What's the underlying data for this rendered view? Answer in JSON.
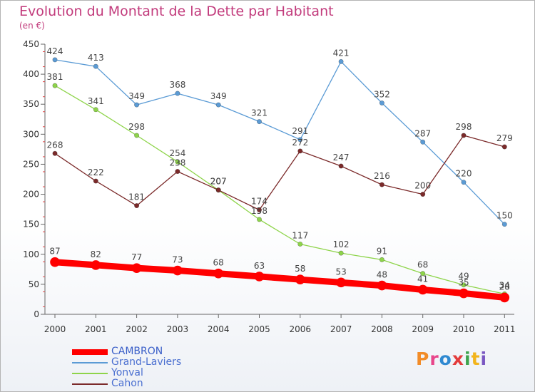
{
  "header": {
    "title": "Evolution du Montant de la Dette par Habitant",
    "unit": "(en €)"
  },
  "logo": {
    "text": "Proxiti",
    "colors": [
      "#f28c28",
      "#e8468b",
      "#2f89d1",
      "#e33b3b",
      "#3ea34d",
      "#f2b41c",
      "#7a57c2"
    ]
  },
  "chart_data": {
    "type": "line",
    "title": "Evolution du Montant de la Dette par Habitant",
    "ylabel": "(en €)",
    "xlabel": "",
    "categories": [
      "2000",
      "2001",
      "2002",
      "2003",
      "2004",
      "2005",
      "2006",
      "2007",
      "2008",
      "2009",
      "2010",
      "2011"
    ],
    "ylim": [
      0,
      450
    ],
    "yticks": [
      0,
      50,
      100,
      150,
      200,
      250,
      300,
      350,
      400,
      450
    ],
    "grid": false,
    "legend": "bottom-left",
    "series": [
      {
        "name": "CAMBRON",
        "color": "#ff0000",
        "emphasis": true,
        "values": [
          87,
          82,
          77,
          73,
          68,
          63,
          58,
          53,
          48,
          41,
          35,
          28
        ],
        "labels": [
          "87",
          "82",
          "77",
          "73",
          "68",
          "63",
          "58",
          "53",
          "48",
          "41",
          "35",
          "28"
        ]
      },
      {
        "name": "Grand-Laviers",
        "color": "#5b9bd5",
        "values": [
          424,
          413,
          349,
          368,
          349,
          321,
          291,
          421,
          352,
          287,
          220,
          150
        ],
        "labels": [
          "424",
          "413",
          "349",
          "368",
          "349",
          "321",
          "291",
          "421",
          "352",
          "287",
          "220",
          "150"
        ]
      },
      {
        "name": "Yonval",
        "color": "#8ed44a",
        "values": [
          381,
          341,
          298,
          254,
          207,
          158,
          117,
          102,
          91,
          68,
          49,
          34
        ],
        "labels": [
          "381",
          "341",
          "298",
          "254",
          "207",
          "158",
          "117",
          "102",
          "91",
          "68",
          "49",
          "34"
        ]
      },
      {
        "name": "Cahon",
        "color": "#7b2a2a",
        "values": [
          268,
          222,
          181,
          238,
          207,
          174,
          272,
          247,
          216,
          200,
          298,
          279
        ],
        "labels": [
          "268",
          "222",
          "181",
          "238",
          "207",
          "174",
          "272",
          "247",
          "216",
          "200",
          "298",
          "279"
        ]
      }
    ]
  }
}
